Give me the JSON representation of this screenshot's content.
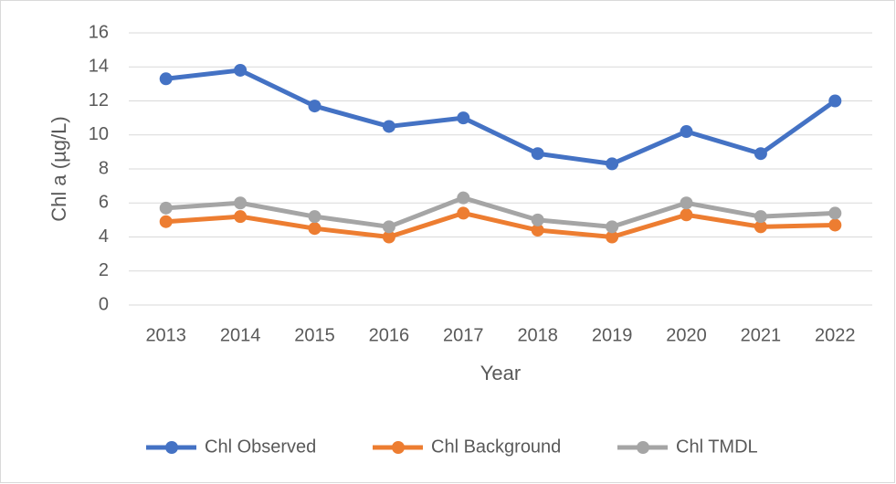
{
  "chart_data": {
    "type": "line",
    "x_label": "Year",
    "y_label": "Chl a (µg/L)",
    "categories": [
      "2013",
      "2014",
      "2015",
      "2016",
      "2017",
      "2018",
      "2019",
      "2020",
      "2021",
      "2022"
    ],
    "series": [
      {
        "name": "Chl Observed",
        "color": "#4472c4",
        "values": [
          13.3,
          13.8,
          11.7,
          10.5,
          11.0,
          8.9,
          8.3,
          10.2,
          8.9,
          12.0
        ]
      },
      {
        "name": "Chl Background",
        "color": "#ed7d31",
        "values": [
          4.9,
          5.2,
          4.5,
          4.0,
          5.4,
          4.4,
          4.0,
          5.3,
          4.6,
          4.7
        ]
      },
      {
        "name": "Chl TMDL",
        "color": "#a5a5a5",
        "values": [
          5.7,
          6.0,
          5.2,
          4.6,
          6.3,
          5.0,
          4.6,
          6.0,
          5.2,
          5.4
        ]
      }
    ],
    "ylim": [
      0,
      16
    ],
    "yticks": [
      0,
      2,
      4,
      6,
      8,
      10,
      12,
      14,
      16
    ],
    "grid": true,
    "legend": "bottom"
  }
}
